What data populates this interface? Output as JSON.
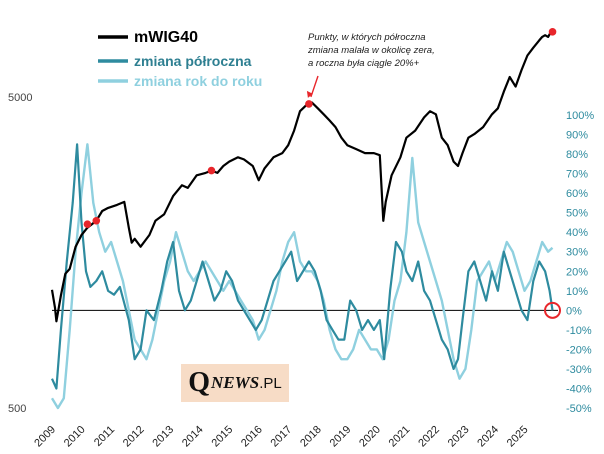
{
  "chart_data": {
    "type": "line",
    "title": "",
    "legend": [
      {
        "name": "mWIG40",
        "color": "#000000"
      },
      {
        "name": "zmiana półroczna",
        "color": "#2e8b9f"
      },
      {
        "name": "zmiana rok do roku",
        "color": "#8fd0df"
      }
    ],
    "annotation": "Punkty, w których półroczna zmiana malała w okolicę zera, a roczna była ciągle 20%+",
    "x_ticks": [
      "2009",
      "2010",
      "2011",
      "2012",
      "2013",
      "2014",
      "2015",
      "2016",
      "2017",
      "2018",
      "2019",
      "2020",
      "2021",
      "2022",
      "2023",
      "2024",
      "2025"
    ],
    "xlim": [
      2009.0,
      2026.0
    ],
    "left_axis": {
      "scale": "log",
      "ticks": [
        "5000",
        "500"
      ],
      "ylim": [
        500,
        8500
      ]
    },
    "right_axis": {
      "ticks": [
        "100%",
        "90%",
        "80%",
        "70%",
        "60%",
        "50%",
        "40%",
        "30%",
        "20%",
        "10%",
        "0%",
        "-10%",
        "-20%",
        "-30%",
        "-40%",
        "-50%"
      ],
      "ylim": [
        -50,
        100
      ]
    },
    "series": [
      {
        "name": "mWIG40",
        "axis": "left",
        "x": [
          2009.0,
          2009.1,
          2009.15,
          2009.3,
          2009.45,
          2009.6,
          2009.8,
          2010.0,
          2010.2,
          2010.35,
          2010.5,
          2010.7,
          2010.9,
          2011.2,
          2011.45,
          2011.6,
          2011.7,
          2011.8,
          2012.0,
          2012.3,
          2012.5,
          2012.8,
          2013.1,
          2013.4,
          2013.6,
          2013.9,
          2014.2,
          2014.4,
          2014.6,
          2014.8,
          2015.0,
          2015.3,
          2015.5,
          2015.8,
          2016.0,
          2016.2,
          2016.5,
          2016.8,
          2017.0,
          2017.2,
          2017.4,
          2017.6,
          2017.8,
          2018.0,
          2018.2,
          2018.4,
          2018.6,
          2018.8,
          2019.0,
          2019.3,
          2019.6,
          2019.9,
          2020.1,
          2020.22,
          2020.3,
          2020.5,
          2020.8,
          2021.0,
          2021.3,
          2021.6,
          2021.8,
          2022.0,
          2022.2,
          2022.4,
          2022.6,
          2022.75,
          2022.9,
          2023.1,
          2023.3,
          2023.6,
          2023.9,
          2024.1,
          2024.3,
          2024.5,
          2024.7,
          2024.9,
          2025.1,
          2025.3,
          2025.5,
          2025.6,
          2025.7,
          2025.8,
          2025.9
        ],
        "values": [
          1200,
          1050,
          950,
          1150,
          1350,
          1400,
          1650,
          1800,
          1900,
          1950,
          2000,
          2150,
          2200,
          2250,
          2300,
          1900,
          1700,
          1750,
          1650,
          1800,
          2000,
          2100,
          2400,
          2600,
          2550,
          2800,
          2850,
          2900,
          2850,
          3000,
          3100,
          3200,
          3150,
          3000,
          2700,
          2950,
          3200,
          3300,
          3500,
          3900,
          4500,
          4700,
          4800,
          4600,
          4400,
          4200,
          4000,
          3700,
          3500,
          3400,
          3300,
          3300,
          3250,
          2000,
          2300,
          2800,
          3200,
          3700,
          3900,
          4300,
          4500,
          4400,
          3700,
          3500,
          3100,
          3000,
          3300,
          3700,
          3800,
          4000,
          4400,
          4600,
          5200,
          5800,
          5400,
          6100,
          6800,
          7200,
          7600,
          7800,
          7900,
          7800,
          8100
        ]
      },
      {
        "name": "zmiana półroczna",
        "axis": "right",
        "x": [
          2009.0,
          2009.15,
          2009.3,
          2009.5,
          2009.7,
          2009.85,
          2010.0,
          2010.15,
          2010.3,
          2010.5,
          2010.7,
          2010.9,
          2011.1,
          2011.3,
          2011.6,
          2011.8,
          2012.0,
          2012.2,
          2012.45,
          2012.7,
          2012.9,
          2013.1,
          2013.3,
          2013.5,
          2013.7,
          2013.9,
          2014.1,
          2014.3,
          2014.5,
          2014.7,
          2014.9,
          2015.1,
          2015.3,
          2015.5,
          2015.7,
          2015.9,
          2016.1,
          2016.3,
          2016.5,
          2016.7,
          2016.9,
          2017.1,
          2017.3,
          2017.5,
          2017.7,
          2017.9,
          2018.1,
          2018.3,
          2018.5,
          2018.7,
          2018.9,
          2019.1,
          2019.3,
          2019.5,
          2019.7,
          2019.9,
          2020.1,
          2020.25,
          2020.45,
          2020.65,
          2020.85,
          2021.0,
          2021.2,
          2021.4,
          2021.6,
          2021.8,
          2022.0,
          2022.2,
          2022.4,
          2022.6,
          2022.75,
          2022.9,
          2023.1,
          2023.3,
          2023.5,
          2023.7,
          2023.9,
          2024.1,
          2024.3,
          2024.5,
          2024.7,
          2024.9,
          2025.1,
          2025.3,
          2025.5,
          2025.7,
          2025.85,
          2025.95
        ],
        "values": [
          -35,
          -40,
          -10,
          25,
          55,
          85,
          45,
          20,
          12,
          15,
          20,
          10,
          8,
          12,
          -5,
          -25,
          -20,
          0,
          -5,
          10,
          25,
          35,
          10,
          0,
          5,
          15,
          25,
          15,
          5,
          10,
          20,
          15,
          5,
          0,
          -5,
          -10,
          -5,
          5,
          15,
          20,
          25,
          30,
          15,
          20,
          25,
          20,
          10,
          -5,
          -10,
          -15,
          -15,
          5,
          0,
          -10,
          -5,
          -10,
          -5,
          -25,
          10,
          35,
          30,
          20,
          15,
          25,
          10,
          5,
          -5,
          -15,
          -20,
          -30,
          -25,
          -5,
          20,
          25,
          15,
          5,
          20,
          10,
          30,
          20,
          10,
          0,
          -5,
          15,
          25,
          20,
          10,
          0
        ]
      },
      {
        "name": "zmiana rok do roku",
        "axis": "right",
        "x": [
          2009.0,
          2009.2,
          2009.4,
          2009.6,
          2009.8,
          2010.0,
          2010.2,
          2010.4,
          2010.6,
          2010.8,
          2011.0,
          2011.2,
          2011.4,
          2011.6,
          2011.8,
          2012.0,
          2012.2,
          2012.4,
          2012.6,
          2012.8,
          2013.0,
          2013.2,
          2013.4,
          2013.6,
          2013.8,
          2014.0,
          2014.2,
          2014.4,
          2014.6,
          2014.8,
          2015.0,
          2015.2,
          2015.4,
          2015.6,
          2015.8,
          2016.0,
          2016.2,
          2016.4,
          2016.6,
          2016.8,
          2017.0,
          2017.2,
          2017.4,
          2017.6,
          2017.8,
          2018.0,
          2018.2,
          2018.4,
          2018.6,
          2018.8,
          2019.0,
          2019.2,
          2019.4,
          2019.6,
          2019.8,
          2020.0,
          2020.2,
          2020.4,
          2020.6,
          2020.8,
          2021.0,
          2021.2,
          2021.4,
          2021.6,
          2021.8,
          2022.0,
          2022.2,
          2022.4,
          2022.6,
          2022.8,
          2023.0,
          2023.2,
          2023.4,
          2023.6,
          2023.8,
          2024.0,
          2024.2,
          2024.4,
          2024.6,
          2024.8,
          2025.0,
          2025.2,
          2025.4,
          2025.6,
          2025.8,
          2025.95
        ],
        "values": [
          -45,
          -50,
          -45,
          -10,
          30,
          60,
          85,
          55,
          40,
          30,
          35,
          25,
          15,
          0,
          -15,
          -20,
          -25,
          -15,
          0,
          15,
          25,
          40,
          30,
          20,
          15,
          20,
          25,
          20,
          15,
          10,
          15,
          10,
          5,
          0,
          -5,
          -15,
          -10,
          0,
          10,
          25,
          35,
          40,
          25,
          20,
          20,
          15,
          5,
          -10,
          -20,
          -25,
          -25,
          -20,
          -10,
          -15,
          -20,
          -20,
          -25,
          -15,
          5,
          15,
          40,
          78,
          45,
          35,
          25,
          15,
          5,
          -10,
          -25,
          -35,
          -30,
          -10,
          15,
          20,
          25,
          15,
          25,
          35,
          30,
          20,
          10,
          15,
          25,
          35,
          30,
          32
        ]
      }
    ],
    "highlight_points_label": "punkty",
    "highlight_points": [
      {
        "x": 2010.2,
        "y": 1950
      },
      {
        "x": 2010.5,
        "y": 2000
      },
      {
        "x": 2014.4,
        "y": 2900
      },
      {
        "x": 2017.7,
        "y": 4750
      },
      {
        "x": 2025.95,
        "y": 8100
      }
    ],
    "current_marker": {
      "x": 2025.95,
      "y": 0
    }
  },
  "logo": {
    "q": "Q",
    "news": "NEWS",
    "pl": ".PL"
  }
}
